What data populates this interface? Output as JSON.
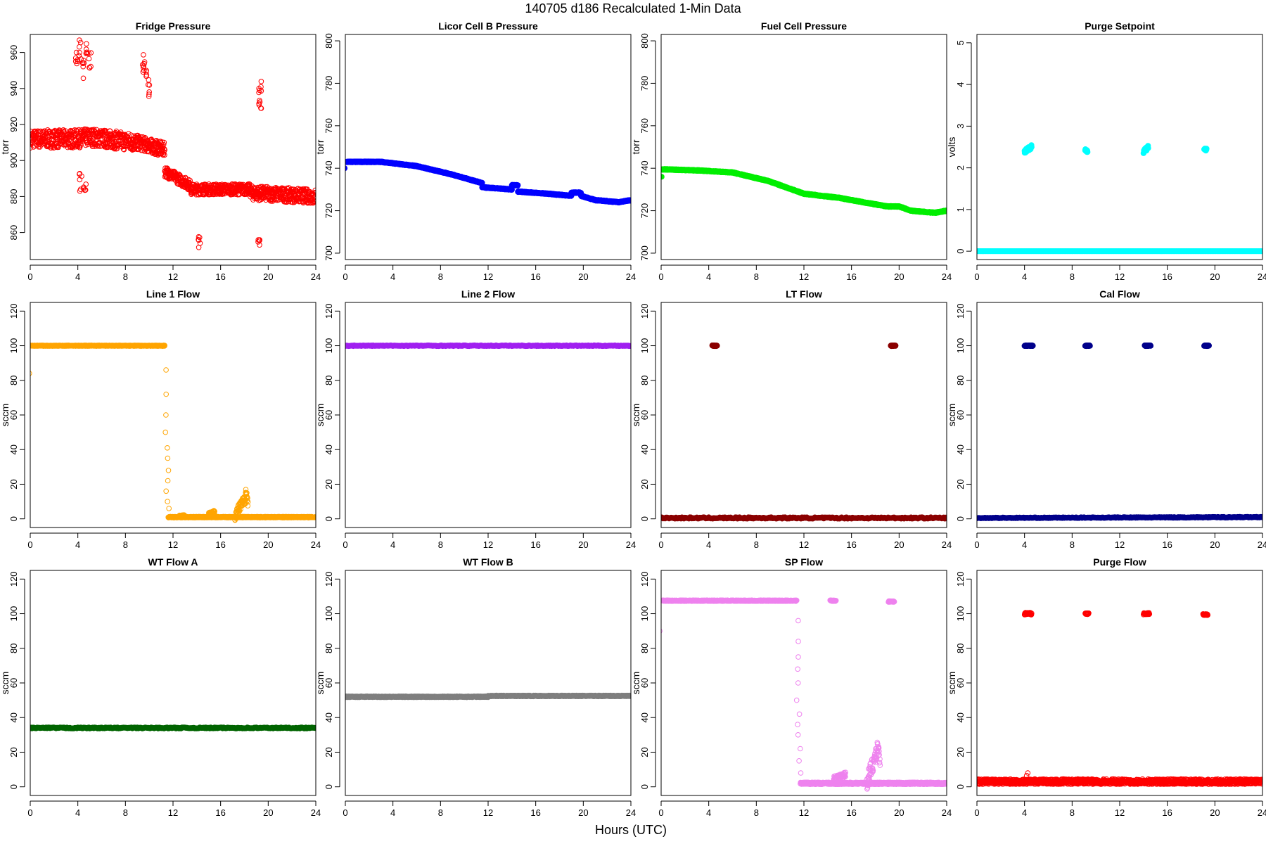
{
  "figure": {
    "title": "140705   d186   Recalculated 1-Min Data",
    "xlabel": "Hours (UTC)"
  },
  "chart_data": [
    {
      "type": "scatter",
      "title": "Fridge Pressure",
      "xlabel": "",
      "ylabel": "torr",
      "xlim": [
        0,
        24
      ],
      "ylim": [
        845,
        970
      ],
      "xticks": [
        0,
        4,
        8,
        12,
        16,
        20,
        24
      ],
      "yticks": [
        860,
        880,
        900,
        920,
        940,
        960
      ],
      "series": [
        {
          "color": "#ff0000",
          "filled": false,
          "segments": [
            [
              0,
              912,
              4,
              912,
              5
            ],
            [
              4,
              912,
              5,
              913,
              5
            ],
            [
              5,
              913,
              9,
              910,
              5
            ],
            [
              9,
              910,
              11.3,
              906,
              4
            ],
            [
              11.3,
              894,
              13.5,
              886,
              3
            ],
            [
              13.5,
              884,
              18.5,
              884,
              3
            ],
            [
              18.5,
              882,
              24,
              880,
              4
            ]
          ],
          "spikes": [
            [
              3.9,
              958,
              5
            ],
            [
              4.2,
              962,
              6
            ],
            [
              4.4,
              950,
              6
            ],
            [
              4.8,
              962,
              6
            ],
            [
              5,
              955,
              5
            ],
            [
              9.5,
              955,
              6
            ],
            [
              9.7,
              950,
              6
            ],
            [
              9.9,
              940,
              5
            ],
            [
              4.2,
              888,
              5
            ],
            [
              4.6,
              885,
              3
            ],
            [
              14.2,
              855,
              4
            ],
            [
              19.3,
              940,
              5
            ],
            [
              19.3,
              930,
              4
            ],
            [
              19.2,
              855,
              3
            ]
          ]
        }
      ]
    },
    {
      "type": "scatter",
      "title": "Licor Cell B Pressure",
      "xlabel": "",
      "ylabel": "torr",
      "xlim": [
        0,
        24
      ],
      "ylim": [
        697,
        803
      ],
      "xticks": [
        0,
        4,
        8,
        12,
        16,
        20,
        24
      ],
      "yticks": [
        700,
        720,
        740,
        760,
        780,
        800
      ],
      "series": [
        {
          "color": "#0000ff",
          "filled": true,
          "segments": [
            [
              0.1,
              743,
              3,
              743,
              0.2
            ],
            [
              3,
              743,
              6,
              741,
              0.2
            ],
            [
              6,
              741,
              9,
              737,
              0.2
            ],
            [
              9,
              737,
              11.5,
              733,
              0.2
            ],
            [
              11.5,
              731,
              14,
              730,
              0.2
            ],
            [
              14,
              732,
              14.5,
              732,
              0.2
            ],
            [
              14.5,
              729,
              17,
              728,
              0.2
            ],
            [
              17,
              728,
              19,
              727,
              0.2
            ],
            [
              19,
              728.5,
              19.8,
              728.5,
              0.2
            ],
            [
              19.8,
              727,
              21,
              725,
              0.2
            ],
            [
              21,
              725,
              23,
              724,
              0.2
            ],
            [
              23,
              724,
              24,
              725,
              0.2
            ]
          ],
          "spikes": [
            [
              0,
              740,
              0
            ]
          ]
        }
      ]
    },
    {
      "type": "scatter",
      "title": "Fuel Cell Pressure",
      "xlabel": "",
      "ylabel": "torr",
      "xlim": [
        0,
        24
      ],
      "ylim": [
        697,
        803
      ],
      "xticks": [
        0,
        4,
        8,
        12,
        16,
        20,
        24
      ],
      "yticks": [
        700,
        720,
        740,
        760,
        780,
        800
      ],
      "series": [
        {
          "color": "#00ee00",
          "filled": true,
          "segments": [
            [
              0.1,
              739.5,
              3,
              739,
              0.2
            ],
            [
              3,
              739,
              6,
              738,
              0.2
            ],
            [
              6,
              738,
              9,
              734,
              0.2
            ],
            [
              9,
              734,
              12,
              728,
              0.2
            ],
            [
              12,
              728,
              15,
              726,
              0.2
            ],
            [
              15,
              726,
              19,
              722,
              0.2
            ],
            [
              19,
              722,
              20,
              722,
              0.2
            ],
            [
              20,
              722,
              21,
              720,
              0.2
            ],
            [
              21,
              720,
              23,
              719,
              0.2
            ],
            [
              23,
              719,
              24,
              720,
              0.2
            ]
          ],
          "spikes": [
            [
              0,
              736,
              0
            ]
          ]
        }
      ]
    },
    {
      "type": "scatter",
      "title": "Purge Setpoint",
      "xlabel": "",
      "ylabel": "volts",
      "xlim": [
        0,
        24
      ],
      "ylim": [
        -0.2,
        5.2
      ],
      "xticks": [
        0,
        4,
        8,
        12,
        16,
        20,
        24
      ],
      "yticks": [
        0,
        1,
        2,
        3,
        4,
        5
      ],
      "series": [
        {
          "color": "#00ffff",
          "filled": true,
          "segments": [
            [
              0,
              0,
              24,
              0,
              0
            ],
            [
              4,
              2.4,
              4.6,
              2.5,
              0.05
            ],
            [
              9.1,
              2.42,
              9.3,
              2.4,
              0.03
            ],
            [
              14,
              2.4,
              14.4,
              2.5,
              0.05
            ],
            [
              19.1,
              2.45,
              19.3,
              2.43,
              0.03
            ]
          ],
          "spikes": []
        }
      ]
    },
    {
      "type": "scatter",
      "title": "Line 1 Flow",
      "xlabel": "",
      "ylabel": "sccm",
      "xlim": [
        0,
        24
      ],
      "ylim": [
        -5,
        125
      ],
      "xticks": [
        0,
        4,
        8,
        12,
        16,
        20,
        24
      ],
      "yticks": [
        0,
        20,
        40,
        60,
        80,
        100,
        120
      ],
      "series": [
        {
          "color": "#ffa500",
          "filled": false,
          "segments": [
            [
              0,
              100,
              11.3,
              100,
              0.2
            ],
            [
              11.6,
              1,
              24,
              1,
              0.3
            ],
            [
              12.5,
              1.5,
              13,
              2,
              0.5
            ],
            [
              15,
              3,
              15.5,
              4,
              1
            ],
            [
              17.2,
              2,
              18.1,
              12,
              3
            ],
            [
              18.1,
              16,
              18.3,
              10,
              3
            ]
          ],
          "spikes": [
            [
              0,
              84,
              0
            ],
            [
              11.4,
              86,
              0
            ],
            [
              11.4,
              72,
              0
            ],
            [
              11.4,
              60,
              0
            ],
            [
              11.45,
              50,
              0
            ],
            [
              11.45,
              41,
              0
            ],
            [
              11.45,
              35,
              0
            ],
            [
              11.5,
              28,
              0
            ],
            [
              11.5,
              22,
              0
            ],
            [
              11.5,
              16,
              0
            ],
            [
              11.55,
              10,
              0
            ],
            [
              11.55,
              6,
              0
            ]
          ]
        }
      ]
    },
    {
      "type": "scatter",
      "title": "Line 2 Flow",
      "xlabel": "",
      "ylabel": "sccm",
      "xlim": [
        0,
        24
      ],
      "ylim": [
        -5,
        125
      ],
      "xticks": [
        0,
        4,
        8,
        12,
        16,
        20,
        24
      ],
      "yticks": [
        0,
        20,
        40,
        60,
        80,
        100,
        120
      ],
      "series": [
        {
          "color": "#a020f0",
          "filled": true,
          "segments": [
            [
              0,
              100,
              24,
              100,
              0.2
            ]
          ],
          "spikes": []
        }
      ]
    },
    {
      "type": "scatter",
      "title": "LT Flow",
      "xlabel": "",
      "ylabel": "sccm",
      "xlim": [
        0,
        24
      ],
      "ylim": [
        -5,
        125
      ],
      "xticks": [
        0,
        4,
        8,
        12,
        16,
        20,
        24
      ],
      "yticks": [
        0,
        20,
        40,
        60,
        80,
        100,
        120
      ],
      "series": [
        {
          "color": "#8b0000",
          "filled": true,
          "segments": [
            [
              0,
              0.5,
              24,
              0.5,
              0.4
            ],
            [
              4.3,
              100,
              4.7,
              100,
              0.2
            ],
            [
              19.3,
              100,
              19.7,
              100,
              0.2
            ]
          ],
          "spikes": []
        }
      ]
    },
    {
      "type": "scatter",
      "title": "Cal Flow",
      "xlabel": "",
      "ylabel": "sccm",
      "xlim": [
        0,
        24
      ],
      "ylim": [
        -5,
        125
      ],
      "xticks": [
        0,
        4,
        8,
        12,
        16,
        20,
        24
      ],
      "yticks": [
        0,
        20,
        40,
        60,
        80,
        100,
        120
      ],
      "series": [
        {
          "color": "#00008b",
          "filled": true,
          "segments": [
            [
              0,
              0.5,
              24,
              1,
              0.2
            ],
            [
              4,
              100,
              4.7,
              100,
              0.2
            ],
            [
              9.1,
              100,
              9.5,
              100,
              0.2
            ],
            [
              14.1,
              100,
              14.6,
              100,
              0.2
            ],
            [
              19.1,
              100,
              19.5,
              100,
              0.2
            ]
          ],
          "spikes": []
        }
      ]
    },
    {
      "type": "scatter",
      "title": "WT Flow A",
      "xlabel": "",
      "ylabel": "sccm",
      "xlim": [
        0,
        24
      ],
      "ylim": [
        -5,
        125
      ],
      "xticks": [
        0,
        4,
        8,
        12,
        16,
        20,
        24
      ],
      "yticks": [
        0,
        20,
        40,
        60,
        80,
        100,
        120
      ],
      "series": [
        {
          "color": "#006400",
          "filled": true,
          "segments": [
            [
              0,
              34,
              24,
              34,
              0.3
            ]
          ],
          "spikes": []
        }
      ]
    },
    {
      "type": "scatter",
      "title": "WT Flow B",
      "xlabel": "",
      "ylabel": "sccm",
      "xlim": [
        0,
        24
      ],
      "ylim": [
        -5,
        125
      ],
      "xticks": [
        0,
        4,
        8,
        12,
        16,
        20,
        24
      ],
      "yticks": [
        0,
        20,
        40,
        60,
        80,
        100,
        120
      ],
      "series": [
        {
          "color": "#7f7f7f",
          "filled": true,
          "segments": [
            [
              0,
              52,
              12,
              52,
              0.2
            ],
            [
              12,
              52.5,
              24,
              52.5,
              0.2
            ]
          ],
          "spikes": []
        }
      ]
    },
    {
      "type": "scatter",
      "title": "SP Flow",
      "xlabel": "",
      "ylabel": "sccm",
      "xlim": [
        0,
        24
      ],
      "ylim": [
        -5,
        125
      ],
      "xticks": [
        0,
        4,
        8,
        12,
        16,
        20,
        24
      ],
      "yticks": [
        0,
        20,
        40,
        60,
        80,
        100,
        120
      ],
      "series": [
        {
          "color": "#ee82ee",
          "filled": false,
          "segments": [
            [
              0.1,
              107.5,
              11.4,
              107.5,
              0.3
            ],
            [
              11.7,
              2,
              24,
              2,
              0.6
            ],
            [
              14.2,
              107.5,
              14.7,
              107.5,
              0.3
            ],
            [
              19.1,
              107,
              19.6,
              107,
              0.3
            ],
            [
              14.5,
              5,
              15.5,
              7,
              1.5
            ],
            [
              17.3,
              3,
              18.2,
              22,
              5
            ],
            [
              18.2,
              25,
              18.4,
              15,
              5
            ]
          ],
          "spikes": [
            [
              0,
              90,
              0
            ],
            [
              11.4,
              96,
              0
            ],
            [
              11.45,
              84,
              0
            ],
            [
              11.45,
              75,
              0
            ],
            [
              11.5,
              68,
              0
            ],
            [
              11.5,
              60,
              0
            ],
            [
              11.5,
              50,
              0
            ],
            [
              11.55,
              42,
              0
            ],
            [
              11.55,
              36,
              0
            ],
            [
              11.55,
              30,
              0
            ],
            [
              11.6,
              22,
              0
            ],
            [
              11.6,
              15,
              0
            ],
            [
              11.65,
              8,
              0
            ]
          ]
        }
      ]
    },
    {
      "type": "scatter",
      "title": "Purge Flow",
      "xlabel": "",
      "ylabel": "sccm",
      "xlim": [
        0,
        24
      ],
      "ylim": [
        -5,
        125
      ],
      "xticks": [
        0,
        4,
        8,
        12,
        16,
        20,
        24
      ],
      "yticks": [
        0,
        20,
        40,
        60,
        80,
        100,
        120
      ],
      "series": [
        {
          "color": "#ff0000",
          "filled": false,
          "segments": [
            [
              0,
              3,
              24,
              3,
              1.5
            ],
            [
              4,
              100,
              4.6,
              100,
              0.6
            ],
            [
              9.1,
              100,
              9.4,
              100,
              0.4
            ],
            [
              14,
              100,
              14.5,
              100,
              0.5
            ],
            [
              19,
              99.5,
              19.4,
              99.5,
              0.4
            ]
          ],
          "spikes": [
            [
              4.2,
              8,
              0
            ],
            [
              4.3,
              6.5,
              0
            ]
          ]
        }
      ]
    }
  ]
}
